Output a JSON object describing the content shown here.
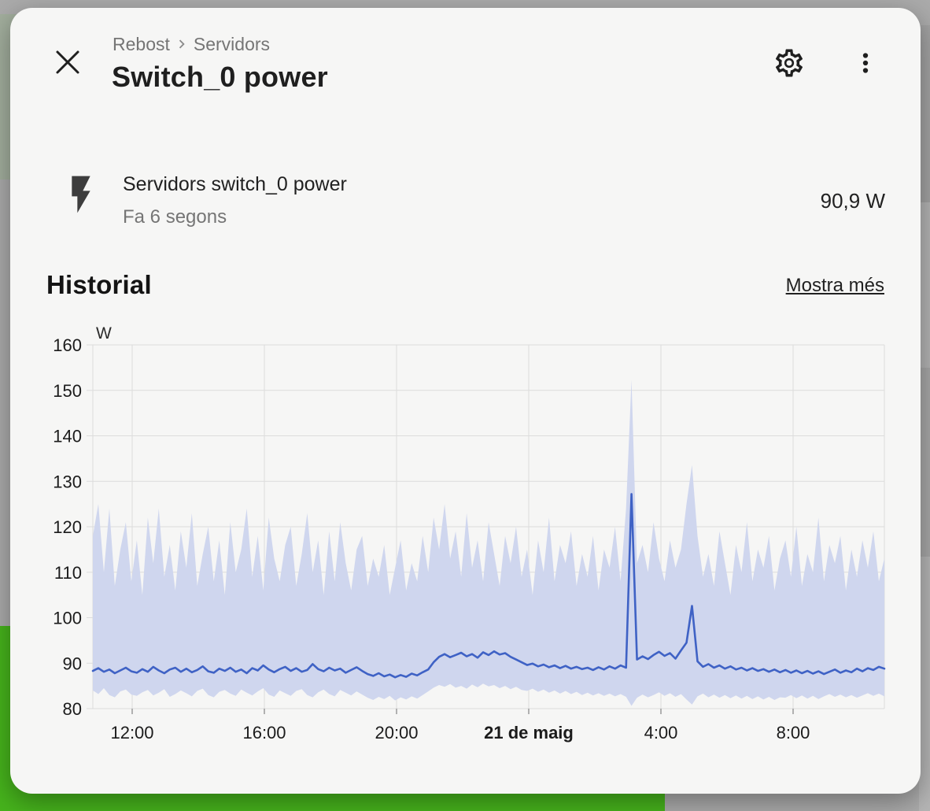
{
  "colors": {
    "accent_green": "#46b31c",
    "sage": "#a2ae9d",
    "backdrop_gray": "#ababab",
    "card_bg": "#f6f6f5",
    "text_primary": "#1f1f1f",
    "text_secondary": "#757575",
    "line_blue": "#3f62c5",
    "band_blue": "#cfd6ee",
    "grid_gray": "#dcdcdc"
  },
  "dialog": {
    "breadcrumb": {
      "parts": [
        "Rebost",
        "Servidors"
      ]
    },
    "title": "Switch_0 power"
  },
  "entity": {
    "name": "Servidors switch_0 power",
    "last_changed": "Fa 6 segons",
    "state": "90,9 W"
  },
  "history": {
    "heading": "Historial",
    "show_more": "Mostra més"
  },
  "chart_data": {
    "type": "line",
    "title": "",
    "xlabel": "",
    "ylabel": "W",
    "unit": "W",
    "ylim": [
      80,
      160
    ],
    "yticks": [
      160,
      150,
      140,
      130,
      120,
      110,
      100,
      90,
      80
    ],
    "grid": true,
    "legend": "none",
    "xticks": [
      {
        "label": "12:00",
        "pos": 0.0497,
        "bold": false
      },
      {
        "label": "16:00",
        "pos": 0.2167,
        "bold": false
      },
      {
        "label": "20:00",
        "pos": 0.3837,
        "bold": false
      },
      {
        "label": "21 de maig",
        "pos": 0.5507,
        "bold": true
      },
      {
        "label": "4:00",
        "pos": 0.7177,
        "bold": false
      },
      {
        "label": "8:00",
        "pos": 0.8847,
        "bold": false
      }
    ],
    "sampling": "one point every 10 minutes over the visible 24 h window",
    "series": [
      {
        "name": "median",
        "values": [
          88.3,
          88.9,
          88.1,
          88.6,
          87.8,
          88.4,
          89.0,
          88.2,
          87.9,
          88.7,
          88.1,
          89.2,
          88.4,
          87.8,
          88.6,
          89.0,
          88.1,
          88.8,
          88.0,
          88.5,
          89.3,
          88.2,
          87.9,
          88.8,
          88.3,
          89.0,
          88.1,
          88.6,
          87.8,
          88.9,
          88.4,
          89.5,
          88.6,
          88.0,
          88.7,
          89.2,
          88.3,
          88.9,
          88.1,
          88.5,
          89.8,
          88.7,
          88.2,
          89.0,
          88.4,
          88.8,
          87.9,
          88.5,
          89.1,
          88.3,
          87.6,
          87.2,
          87.8,
          87.1,
          87.5,
          86.9,
          87.4,
          87.0,
          87.7,
          87.3,
          88.0,
          88.6,
          90.2,
          91.4,
          92.0,
          91.3,
          91.8,
          92.3,
          91.5,
          92.0,
          91.2,
          92.4,
          91.8,
          92.6,
          91.9,
          92.2,
          91.4,
          90.8,
          90.2,
          89.6,
          89.9,
          89.3,
          89.7,
          89.1,
          89.5,
          88.9,
          89.4,
          88.8,
          89.2,
          88.7,
          89.0,
          88.5,
          89.1,
          88.6,
          89.3,
          88.8,
          89.5,
          89.0,
          127.2,
          90.8,
          91.5,
          90.9,
          91.8,
          92.5,
          91.6,
          92.2,
          91.0,
          92.8,
          94.5,
          102.6,
          90.4,
          89.2,
          89.8,
          89.0,
          89.5,
          88.8,
          89.3,
          88.6,
          89.0,
          88.4,
          88.9,
          88.3,
          88.7,
          88.1,
          88.6,
          88.0,
          88.5,
          87.9,
          88.4,
          87.8,
          88.3,
          87.7,
          88.2,
          87.6,
          88.1,
          88.6,
          87.9,
          88.4,
          88.0,
          88.8,
          88.2,
          88.9,
          88.5,
          89.2,
          88.8
        ]
      },
      {
        "name": "min",
        "values": [
          84.0,
          83.2,
          84.5,
          83.0,
          82.5,
          83.8,
          84.2,
          83.1,
          82.8,
          83.6,
          84.1,
          82.9,
          83.5,
          84.3,
          82.6,
          83.2,
          84.0,
          83.4,
          82.7,
          83.9,
          84.4,
          83.0,
          82.5,
          83.7,
          84.1,
          83.3,
          82.8,
          84.2,
          83.5,
          82.9,
          83.8,
          84.5,
          83.1,
          82.6,
          84.0,
          83.4,
          82.8,
          83.9,
          84.3,
          83.0,
          82.5,
          83.6,
          84.2,
          83.2,
          82.7,
          84.1,
          83.5,
          82.9,
          83.8,
          83.1,
          82.4,
          81.9,
          82.6,
          82.1,
          82.8,
          81.8,
          82.5,
          82.0,
          82.7,
          82.2,
          83.0,
          83.8,
          84.6,
          85.2,
          84.8,
          85.4,
          84.6,
          85.0,
          84.4,
          85.3,
          84.7,
          85.5,
          84.9,
          85.2,
          84.5,
          85.0,
          84.3,
          84.8,
          84.1,
          83.9,
          84.4,
          83.7,
          84.2,
          83.5,
          84.0,
          83.3,
          83.9,
          83.2,
          83.7,
          83.0,
          83.5,
          82.9,
          83.4,
          82.8,
          83.3,
          82.7,
          83.2,
          82.6,
          80.6,
          82.4,
          83.1,
          82.5,
          83.0,
          83.6,
          82.8,
          83.4,
          82.6,
          83.2,
          82.0,
          80.9,
          82.7,
          83.3,
          82.5,
          83.1,
          82.4,
          83.0,
          82.3,
          82.9,
          82.2,
          82.8,
          82.1,
          82.7,
          82.0,
          82.6,
          81.9,
          82.5,
          82.4,
          83.0,
          82.3,
          82.9,
          82.2,
          82.8,
          82.1,
          82.7,
          83.2,
          82.6,
          83.1,
          82.5,
          83.0,
          82.4,
          82.9,
          83.4,
          82.8,
          83.3,
          82.7
        ]
      },
      {
        "name": "max",
        "values": [
          118,
          125,
          110,
          124,
          107,
          115,
          121,
          108,
          117,
          105,
          122,
          112,
          124,
          109,
          116,
          106,
          119,
          111,
          123,
          107,
          114,
          120,
          108,
          117,
          105,
          121,
          110,
          115,
          124,
          109,
          118,
          106,
          122,
          113,
          108,
          116,
          120,
          107,
          114,
          123,
          110,
          117,
          105,
          119,
          108,
          121,
          112,
          106,
          115,
          118,
          107,
          113,
          109,
          116,
          105,
          111,
          117,
          106,
          112,
          108,
          118,
          110,
          122,
          115,
          125,
          113,
          119,
          109,
          123,
          111,
          117,
          108,
          121,
          114,
          107,
          118,
          112,
          120,
          109,
          115,
          105,
          117,
          110,
          122,
          108,
          116,
          112,
          119,
          107,
          114,
          109,
          118,
          106,
          115,
          111,
          120,
          108,
          124,
          152.3,
          112,
          116,
          110,
          121,
          113,
          108,
          117,
          111,
          115,
          125,
          133.6,
          118,
          109,
          114,
          107,
          119,
          112,
          105,
          116,
          110,
          121,
          108,
          115,
          111,
          118,
          106,
          113,
          117,
          109,
          120,
          107,
          114,
          110,
          122,
          108,
          116,
          112,
          118,
          106,
          115,
          109,
          117,
          111,
          119,
          108,
          113
        ]
      }
    ]
  }
}
